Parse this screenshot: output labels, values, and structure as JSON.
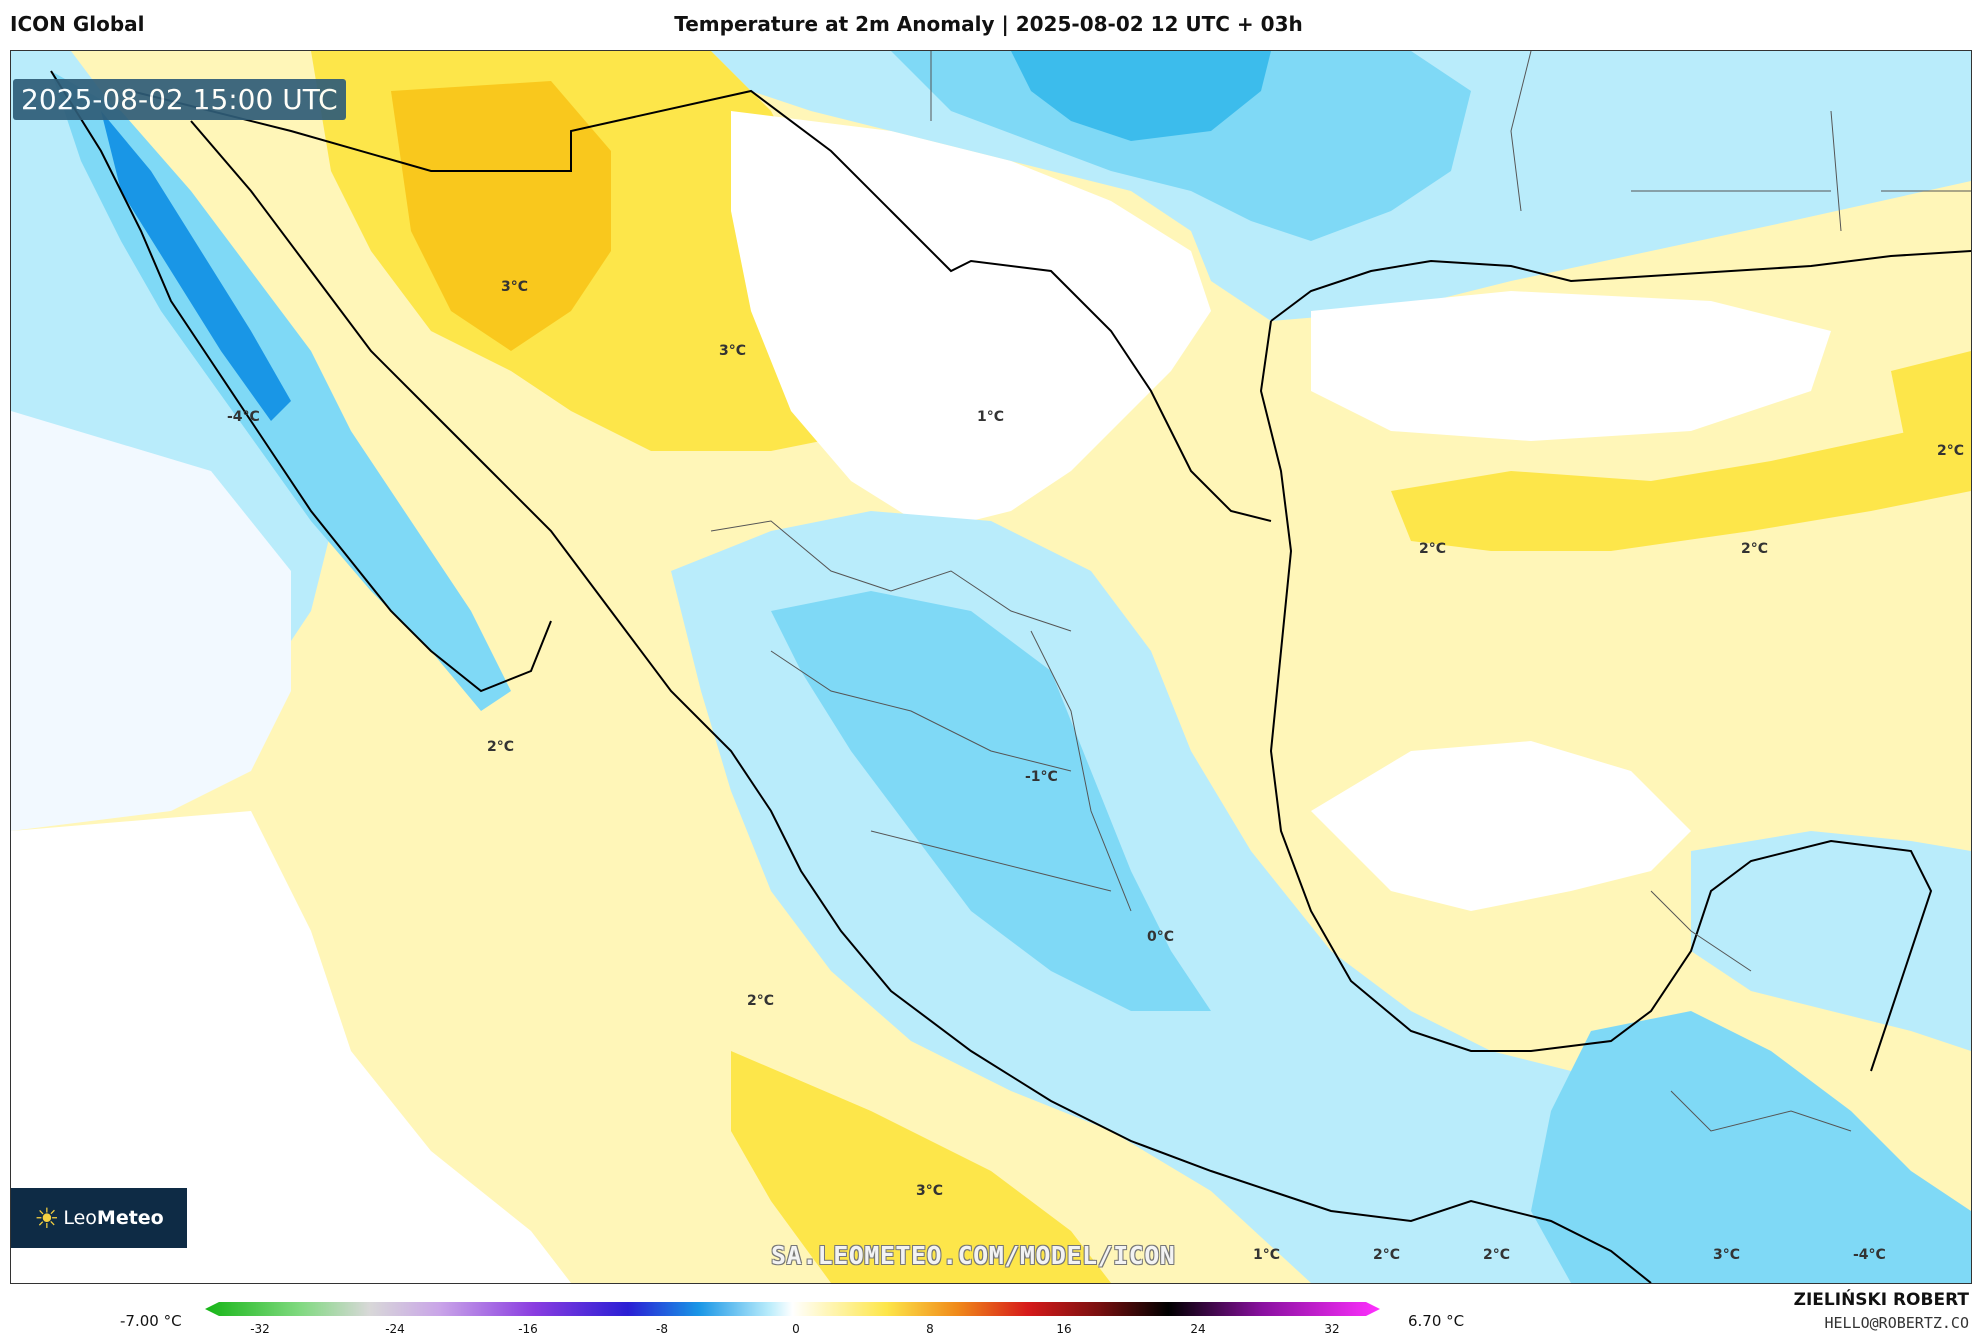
{
  "header": {
    "model": "ICON Global",
    "title": "Temperature at 2m Anomaly | 2025-08-02 12 UTC + 03h"
  },
  "map": {
    "valid_time": "2025-08-02 15:00 UTC",
    "watermark": "SA.LEOMETEO.COM/MODEL/ICON",
    "logo": {
      "brand_light": "Leo",
      "brand_bold": "Meteo"
    },
    "contour_labels": [
      "3°C",
      "3°C",
      "1°C",
      "-4°C",
      "2°C",
      "2°C",
      "2°C",
      "2°C",
      "-1°C",
      "0°C",
      "2°C",
      "3°C",
      "1°C",
      "2°C",
      "2°C",
      "3°C",
      "-4°C"
    ],
    "colors": {
      "warm_light": "#fff6b8",
      "warm_mid": "#fde64a",
      "warm_strong": "#f9c81d",
      "cool_faint": "#f2f9ff",
      "cool_light": "#b9ecfb",
      "cool_mid": "#7fd9f6",
      "cool_strong": "#3cbcec",
      "cool_deep": "#1996e6",
      "coast": "#000000"
    }
  },
  "legend": {
    "min_label": "-7.00 °C",
    "max_label": "6.70 °C",
    "ticks": [
      "-32",
      "-24",
      "-16",
      "-8",
      "0",
      "8",
      "16",
      "24",
      "32"
    ]
  },
  "footer": {
    "author": "ZIELIŃSKI ROBERT",
    "email": "HELLO@ROBERTZ.CO"
  }
}
